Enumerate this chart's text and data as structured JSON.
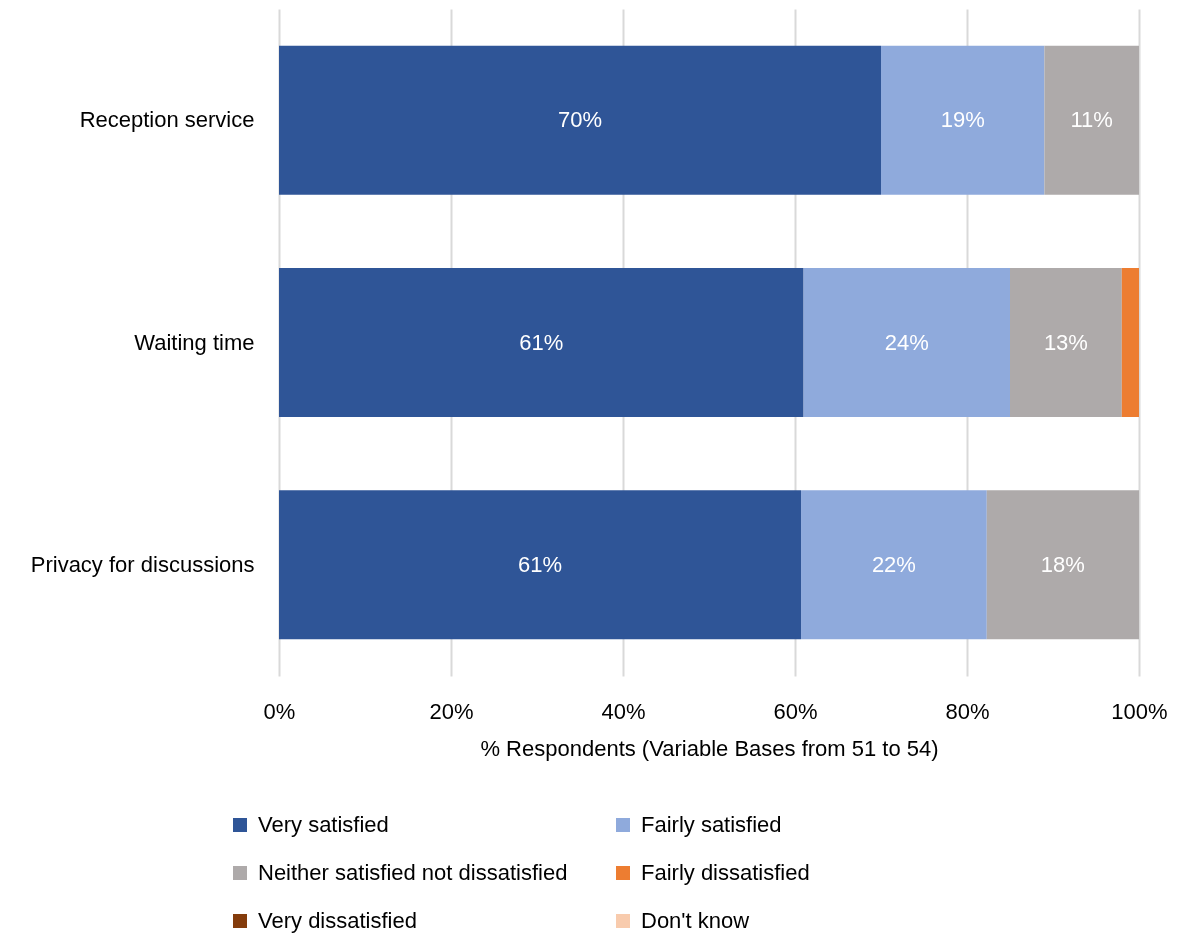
{
  "chart_data": {
    "type": "bar",
    "orientation": "horizontal",
    "stacked": true,
    "categories": [
      "Reception service",
      "Waiting time",
      "Privacy for discussions"
    ],
    "xlabel": "% Respondents (Variable Bases from 51 to 54)",
    "xlim": [
      0,
      100
    ],
    "xticks": [
      {
        "value": 0,
        "label": "0%"
      },
      {
        "value": 20,
        "label": "20%"
      },
      {
        "value": 40,
        "label": "40%"
      },
      {
        "value": 60,
        "label": "60%"
      },
      {
        "value": 80,
        "label": "80%"
      },
      {
        "value": 100,
        "label": "100%"
      }
    ],
    "grid": "x",
    "legend": "bottom",
    "series": [
      {
        "name": "Very satisfied",
        "color": "#2f5597",
        "values": [
          70,
          61,
          60.7
        ],
        "value_labels": [
          "70%",
          "61%",
          "61%"
        ]
      },
      {
        "name": "Fairly satisfied",
        "color": "#8faadc",
        "values": [
          19,
          24,
          21.6
        ],
        "value_labels": [
          "19%",
          "24%",
          "22%"
        ]
      },
      {
        "name": "Neither satisfied not dissatisfied",
        "color": "#aeaaaa",
        "values": [
          11,
          13,
          17.7
        ],
        "value_labels": [
          "11%",
          "13%",
          "18%"
        ]
      },
      {
        "name": "Fairly dissatisfied",
        "color": "#ed7d31",
        "values": [
          null,
          2,
          null
        ],
        "value_labels": [
          null,
          null,
          null
        ]
      },
      {
        "name": "Very dissatisfied",
        "color": "#843c0c",
        "values": [
          null,
          null,
          null
        ]
      },
      {
        "name": "Don't know",
        "color": "#f8cbad",
        "values": [
          null,
          null,
          null
        ]
      }
    ]
  }
}
